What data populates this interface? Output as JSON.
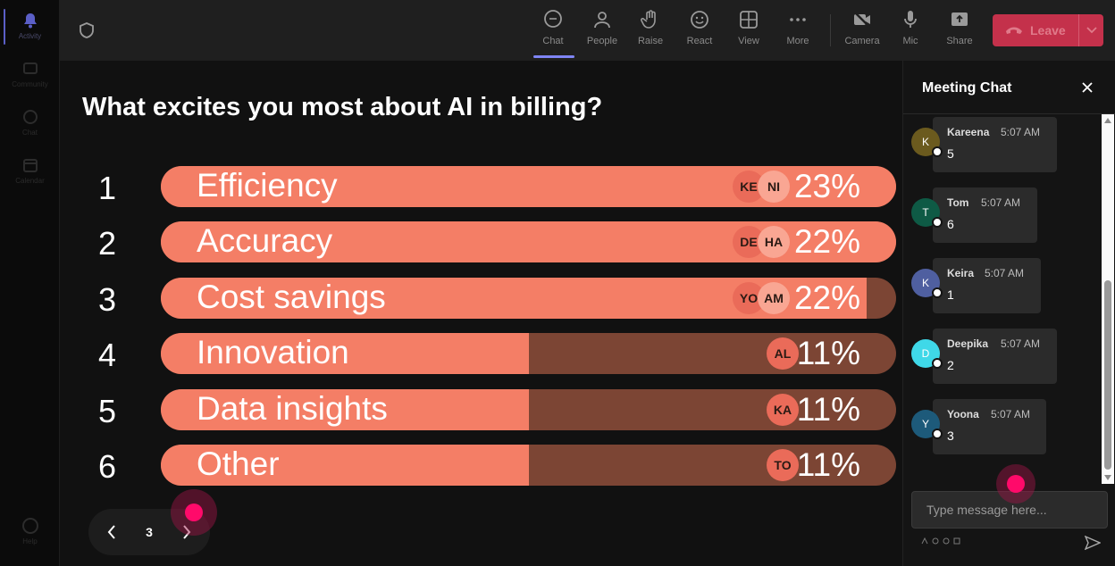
{
  "colors": {
    "bar_fill": "#f47e66",
    "bar_track": "#7c4534",
    "leave": "#c4314b",
    "accent": "#7f85f5"
  },
  "rail": {
    "items": [
      {
        "label": "Activity",
        "icon": "bell-icon"
      },
      {
        "label": "Community",
        "icon": "community-icon"
      },
      {
        "label": "Chat",
        "icon": "chat-icon"
      },
      {
        "label": "Calendar",
        "icon": "calendar-icon"
      }
    ],
    "help_label": "Help"
  },
  "toolbar": {
    "buttons": [
      {
        "label": "Chat",
        "icon": "chat-icon"
      },
      {
        "label": "People",
        "icon": "people-icon"
      },
      {
        "label": "Raise",
        "icon": "hand-icon"
      },
      {
        "label": "React",
        "icon": "smile-icon"
      },
      {
        "label": "View",
        "icon": "grid-icon"
      },
      {
        "label": "More",
        "icon": "more-icon"
      },
      {
        "label": "Camera",
        "icon": "camera-off-icon"
      },
      {
        "label": "Mic",
        "icon": "mic-icon"
      },
      {
        "label": "Share",
        "icon": "share-icon"
      }
    ],
    "leave_label": "Leave"
  },
  "poll": {
    "question": "What excites you most about AI in billing?",
    "options": [
      {
        "rank": "1",
        "label": "Efficiency",
        "percent": 23,
        "percent_label": "23%",
        "voters": [
          "KE",
          "NI"
        ]
      },
      {
        "rank": "2",
        "label": "Accuracy",
        "percent": 22,
        "percent_label": "22%",
        "voters": [
          "DE",
          "HA"
        ]
      },
      {
        "rank": "3",
        "label": "Cost savings",
        "percent": 22,
        "percent_label": "22%",
        "voters": [
          "YO",
          "AM"
        ]
      },
      {
        "rank": "4",
        "label": "Innovation",
        "percent": 11,
        "percent_label": "11%",
        "voters": [
          "AL"
        ]
      },
      {
        "rank": "5",
        "label": "Data insights",
        "percent": 11,
        "percent_label": "11%",
        "voters": [
          "KA"
        ]
      },
      {
        "rank": "6",
        "label": "Other",
        "percent": 11,
        "percent_label": "11%",
        "voters": [
          "TO"
        ]
      }
    ],
    "page": "3"
  },
  "chat": {
    "title": "Meeting Chat",
    "messages": [
      {
        "initial": "K",
        "name": "Kareena",
        "time": "5:07 AM",
        "text": "5",
        "avatar_color": "#6b5a1e"
      },
      {
        "initial": "T",
        "name": "Tom",
        "time": "5:07 AM",
        "text": "6",
        "avatar_color": "#0e5a45"
      },
      {
        "initial": "K",
        "name": "Keira",
        "time": "5:07 AM",
        "text": "1",
        "avatar_color": "#4f5fa0"
      },
      {
        "initial": "D",
        "name": "Deepika",
        "time": "5:07 AM",
        "text": "2",
        "avatar_color": "#3fd8e8"
      },
      {
        "initial": "Y",
        "name": "Yoona",
        "time": "5:07 AM",
        "text": "3",
        "avatar_color": "#1d5a7a"
      }
    ],
    "compose_placeholder": "Type message here..."
  }
}
